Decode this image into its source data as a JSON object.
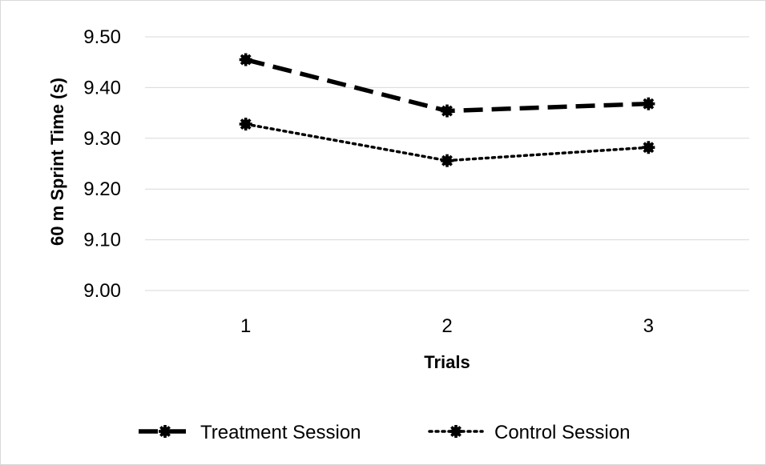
{
  "chart_data": {
    "type": "line",
    "categories": [
      "1",
      "2",
      "3"
    ],
    "series": [
      {
        "name": "Treatment Session",
        "values": [
          9.455,
          9.354,
          9.368
        ],
        "line_style": "dashed",
        "color": "#000000"
      },
      {
        "name": "Control Session",
        "values": [
          9.328,
          9.256,
          9.282
        ],
        "line_style": "dotted",
        "color": "#000000"
      }
    ],
    "xlabel": "Trials",
    "ylabel": "60 m Sprint Time (s)",
    "ylim": [
      9.0,
      9.5
    ],
    "yticks": [
      "9.00",
      "9.10",
      "9.20",
      "9.30",
      "9.40",
      "9.50"
    ],
    "grid": "horizontal",
    "gridline_color": "#d9d9d9",
    "legend_position": "bottom"
  }
}
